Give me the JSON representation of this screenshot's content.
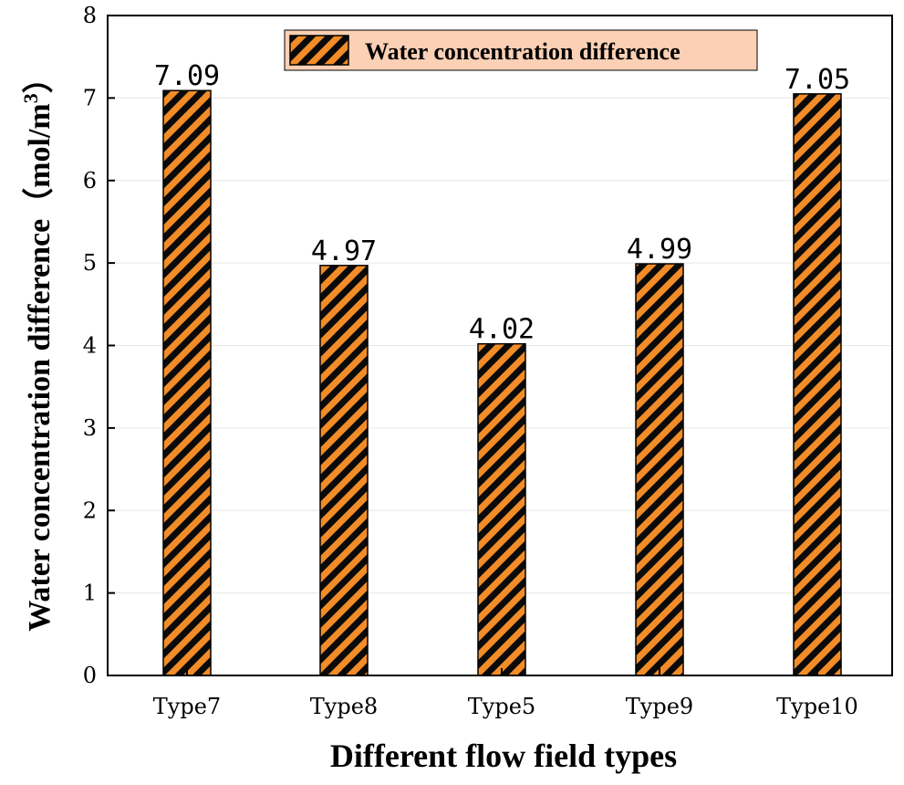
{
  "chart_data": {
    "type": "bar",
    "categories": [
      "Type7",
      "Type8",
      "Type5",
      "Type9",
      "Type10"
    ],
    "values": [
      7.09,
      4.97,
      4.02,
      4.99,
      7.05
    ],
    "data_labels": [
      "7.09",
      "4.97",
      "4.02",
      "4.99",
      "7.05"
    ],
    "series_name": "Water concentration difference",
    "xlabel": "Different flow field types",
    "ylabel_main": "Water concentration difference（mol/m",
    "ylabel_sup": "3",
    "ylabel_close": "）",
    "ylim": [
      0,
      8
    ],
    "yticks": [
      0,
      1,
      2,
      3,
      4,
      5,
      6,
      7,
      8
    ],
    "grid": true,
    "legend_position": "top-center",
    "colors": {
      "bar_fill": "#f28c28",
      "bar_hatch": "#0a0a0a",
      "legend_bg": "#fbd0b5",
      "grid": "#e6e6e6"
    }
  }
}
